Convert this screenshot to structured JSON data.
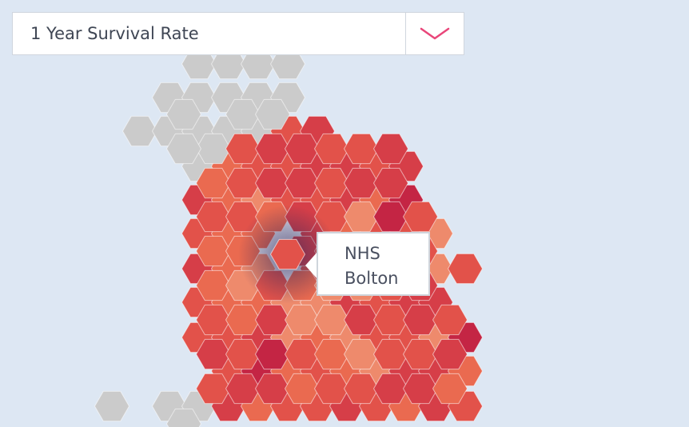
{
  "selector": {
    "selected": "1 Year Survival Rate",
    "accent_color": "#e9467a"
  },
  "tooltip": {
    "line1": "NHS",
    "line2": "Bolton"
  },
  "legend_colors": {
    "no_data": "#cbcbcb",
    "lightest": "#ee8a6c",
    "light": "#ea6a50",
    "mid": "#e2524a",
    "dark": "#d63e48",
    "darkest": "#c42544"
  },
  "icons": {
    "dropdown": "chevron-down-icon"
  }
}
